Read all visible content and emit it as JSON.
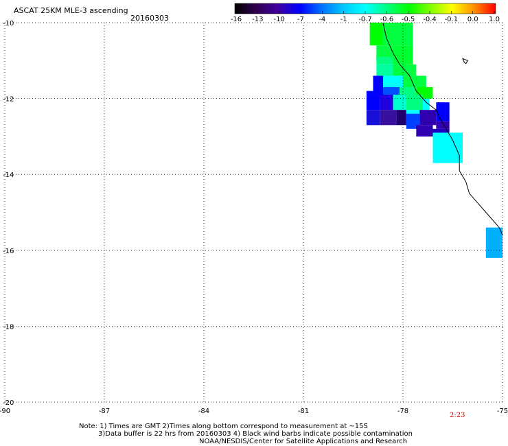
{
  "header": {
    "title": "ASCAT 25KM MLE-3 ascending",
    "date": "20160303"
  },
  "colorbar": {
    "labels": [
      "-16",
      "-13",
      "-10",
      "-7",
      "-4",
      "-1",
      "-0.7",
      "-0.6",
      "-0.5",
      "-0.4",
      "-0.1",
      "0.0",
      "1.0"
    ],
    "colors": [
      "#000000",
      "#300050",
      "#4000a0",
      "#0000ff",
      "#0070ff",
      "#00c8ff",
      "#00ffff",
      "#00ff80",
      "#00ff00",
      "#80ff00",
      "#ffff00",
      "#ff9000",
      "#ff0000"
    ]
  },
  "map": {
    "lon_labels": [
      "-90",
      "-87",
      "-84",
      "-81",
      "-78",
      "-75"
    ],
    "lat_labels": [
      "-10",
      "-12",
      "-14",
      "-16",
      "-18",
      "-20"
    ],
    "lon_range": [
      -90,
      -75
    ],
    "lat_range": [
      -20,
      -10
    ],
    "grid": "dotted",
    "cells": [
      {
        "lon": [
          -79.0,
          -78.6
        ],
        "lat": [
          -10.6,
          -10.0
        ],
        "color": "#00ff00"
      },
      {
        "lon": [
          -78.6,
          -77.7
        ],
        "lat": [
          -10.6,
          -10.0
        ],
        "color": "#00ff40"
      },
      {
        "lon": [
          -78.8,
          -78.3
        ],
        "lat": [
          -11.0,
          -10.6
        ],
        "color": "#00ff40"
      },
      {
        "lon": [
          -78.3,
          -77.7
        ],
        "lat": [
          -11.1,
          -10.6
        ],
        "color": "#00ff30"
      },
      {
        "lon": [
          -78.8,
          -78.3
        ],
        "lat": [
          -11.1,
          -10.9
        ],
        "color": "#00ff80"
      },
      {
        "lon": [
          -78.8,
          -78.3
        ],
        "lat": [
          -11.4,
          -11.1
        ],
        "color": "#00ffa0"
      },
      {
        "lon": [
          -78.3,
          -77.6
        ],
        "lat": [
          -11.4,
          -11.1
        ],
        "color": "#00ff40"
      },
      {
        "lon": [
          -78.6,
          -78.0
        ],
        "lat": [
          -11.8,
          -11.4
        ],
        "color": "#00ffff"
      },
      {
        "lon": [
          -78.0,
          -77.3
        ],
        "lat": [
          -11.7,
          -11.4
        ],
        "color": "#00ff40"
      },
      {
        "lon": [
          -78.9,
          -78.6
        ],
        "lat": [
          -12.0,
          -11.4
        ],
        "color": "#0000ff"
      },
      {
        "lon": [
          -78.6,
          -78.1
        ],
        "lat": [
          -12.0,
          -11.7
        ],
        "color": "#0050ff"
      },
      {
        "lon": [
          -78.1,
          -77.6
        ],
        "lat": [
          -12.0,
          -11.7
        ],
        "color": "#00ff80"
      },
      {
        "lon": [
          -77.6,
          -77.1
        ],
        "lat": [
          -12.0,
          -11.7
        ],
        "color": "#00ff00"
      },
      {
        "lon": [
          -79.1,
          -78.7
        ],
        "lat": [
          -12.3,
          -11.8
        ],
        "color": "#0000ff"
      },
      {
        "lon": [
          -78.7,
          -78.3
        ],
        "lat": [
          -12.3,
          -11.9
        ],
        "color": "#2000e0"
      },
      {
        "lon": [
          -78.3,
          -77.9
        ],
        "lat": [
          -12.3,
          -11.9
        ],
        "color": "#00ffd0"
      },
      {
        "lon": [
          -77.9,
          -77.4
        ],
        "lat": [
          -12.3,
          -11.9
        ],
        "color": "#00ff80"
      },
      {
        "lon": [
          -77.4,
          -77.2
        ],
        "lat": [
          -12.3,
          -12.0
        ],
        "color": "#00ffff"
      },
      {
        "lon": [
          -79.1,
          -78.7
        ],
        "lat": [
          -12.7,
          -12.3
        ],
        "color": "#1810d8"
      },
      {
        "lon": [
          -78.7,
          -78.2
        ],
        "lat": [
          -12.7,
          -12.3
        ],
        "color": "#3810a0"
      },
      {
        "lon": [
          -78.2,
          -77.9
        ],
        "lat": [
          -12.7,
          -12.3
        ],
        "color": "#200070"
      },
      {
        "lon": [
          -77.9,
          -77.5
        ],
        "lat": [
          -12.4,
          -12.3
        ],
        "color": "#00ffff"
      },
      {
        "lon": [
          -77.5,
          -77.0
        ],
        "lat": [
          -12.7,
          -12.3
        ],
        "color": "#3000b0"
      },
      {
        "lon": [
          -77.9,
          -77.5
        ],
        "lat": [
          -12.8,
          -12.4
        ],
        "color": "#0040ff"
      },
      {
        "lon": [
          -77.0,
          -76.6
        ],
        "lat": [
          -12.6,
          -12.1
        ],
        "color": "#0000ff"
      },
      {
        "lon": [
          -77.0,
          -76.6
        ],
        "lat": [
          -12.8,
          -12.6
        ],
        "color": "#3000b0"
      },
      {
        "lon": [
          -77.6,
          -77.1
        ],
        "lat": [
          -13.0,
          -12.7
        ],
        "color": "#3000b0"
      },
      {
        "lon": [
          -77.1,
          -76.6
        ],
        "lat": [
          -13.0,
          -12.8
        ],
        "color": "#2000c0"
      },
      {
        "lon": [
          -77.1,
          -76.2
        ],
        "lat": [
          -13.7,
          -12.9
        ],
        "color": "#00ffff"
      },
      {
        "lon": [
          -75.5,
          -75.0
        ],
        "lat": [
          -16.2,
          -15.4
        ],
        "color": "#00b0ff"
      }
    ],
    "coastline": [
      [
        -78.6,
        -10.0
      ],
      [
        -78.5,
        -10.4
      ],
      [
        -78.3,
        -10.8
      ],
      [
        -78.1,
        -11.1
      ],
      [
        -77.8,
        -11.4
      ],
      [
        -77.6,
        -11.8
      ],
      [
        -77.3,
        -12.1
      ],
      [
        -77.0,
        -12.3
      ],
      [
        -76.9,
        -12.5
      ],
      [
        -76.7,
        -12.8
      ],
      [
        -76.5,
        -13.1
      ],
      [
        -76.3,
        -13.5
      ],
      [
        -76.3,
        -13.9
      ],
      [
        -76.1,
        -14.2
      ],
      [
        -76.0,
        -14.5
      ],
      [
        -75.7,
        -14.8
      ],
      [
        -75.4,
        -15.1
      ],
      [
        -75.1,
        -15.4
      ],
      [
        -75.0,
        -15.6
      ]
    ],
    "island": [
      [
        -76.2,
        -10.95
      ],
      [
        -76.05,
        -11.0
      ],
      [
        -76.1,
        -11.08
      ],
      [
        -76.15,
        -11.05
      ]
    ]
  },
  "timestamp": "2:23",
  "notes": {
    "line1": "Note: 1) Times are GMT 2)Times along bottom correspond to measurement at ~15S",
    "line2": "3)Data buffer is 22 hrs from 20160303 4) Black wind barbs indicate possible contamination",
    "line3": "NOAA/NESDIS/Center for Satellite Applications and Research"
  }
}
